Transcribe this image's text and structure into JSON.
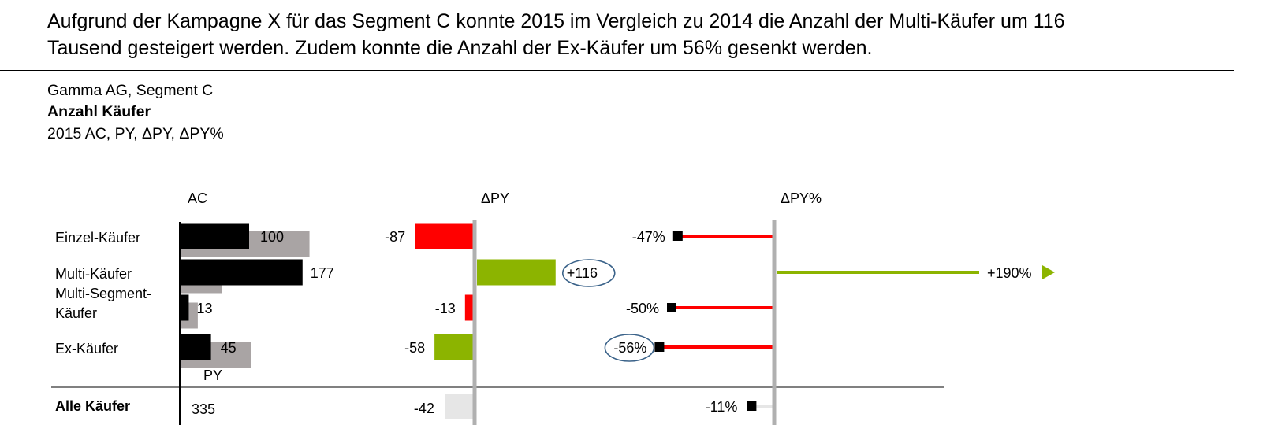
{
  "headline": {
    "line1": "Aufgrund der Kampagne X für das Segment C konnte 2015 im Vergleich zu 2014 die Anzahl der Multi-Käufer um 116",
    "line2": "Tausend gesteigert werden. Zudem konnte die Anzahl der Ex-Käufer um 56% gesenkt werden."
  },
  "subtitle": {
    "entity": "Gamma AG, Segment C",
    "measure": "Anzahl Käufer",
    "scenario": "2015 AC, PY, ΔPY, ΔPY%"
  },
  "colors": {
    "ac": "#000000",
    "py": "#a9a4a4",
    "negative": "#ff0000",
    "positive": "#8cb400",
    "total_delta": "#e6e6e6",
    "axis": "#b0b0b0",
    "highlight_ring": "#3a6289"
  },
  "chart_data": {
    "type": "bar",
    "columns": {
      "ac": "AC",
      "dpy": "ΔPY",
      "dpy_pct": "ΔPY%",
      "py_marker": "PY"
    },
    "categories": [
      {
        "lines": [
          "Einzel-Käufer"
        ],
        "ac": 100,
        "ac_label": "100",
        "py": 187,
        "dpy": -87,
        "dpy_label": "-87",
        "dpy_color": "negative",
        "dpy_pct": -47,
        "dpy_pct_label": "-47%",
        "dpy_pct_color": "negative"
      },
      {
        "lines": [
          "Multi-Käufer"
        ],
        "ac": 177,
        "ac_label": "177",
        "py": 61,
        "dpy": 116,
        "dpy_label": "+116",
        "dpy_color": "positive",
        "dpy_pct": 190,
        "dpy_pct_label": "+190%",
        "dpy_pct_color": "positive"
      },
      {
        "lines": [
          "Multi-Segment-",
          "Käufer"
        ],
        "ac": 13,
        "ac_label": "13",
        "py": 26,
        "dpy": -13,
        "dpy_label": "-13",
        "dpy_color": "negative",
        "dpy_pct": -50,
        "dpy_pct_label": "-50%",
        "dpy_pct_color": "negative"
      },
      {
        "lines": [
          "Ex-Käufer"
        ],
        "ac": 45,
        "ac_label": "45",
        "py": 103,
        "dpy": -58,
        "dpy_label": "-58",
        "dpy_color": "positive",
        "dpy_pct": -56,
        "dpy_pct_label": "-56%",
        "dpy_pct_color": "negative"
      }
    ],
    "total": {
      "label": "Alle Käufer",
      "ac": 335,
      "ac_label": "335",
      "dpy": -42,
      "dpy_label": "-42",
      "dpy_pct": -11,
      "dpy_pct_label": "-11%"
    },
    "highlighted": [
      "+116",
      "-56%"
    ]
  }
}
